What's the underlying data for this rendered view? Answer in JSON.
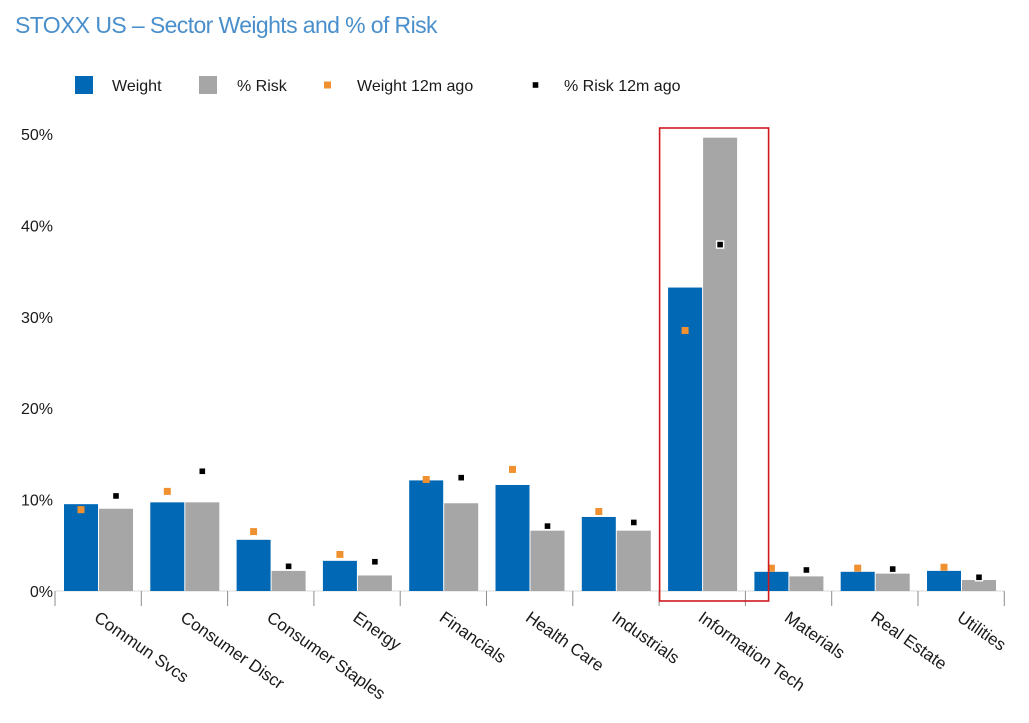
{
  "chart_data": {
    "type": "bar",
    "title": "STOXX US – Sector Weights and % of Risk",
    "categories": [
      "Commun Svcs",
      "Consumer Discr",
      "Consumer Staples",
      "Energy",
      "Financials",
      "Health Care",
      "Industrials",
      "Information Tech",
      "Materials",
      "Real Estate",
      "Utilities"
    ],
    "series": [
      {
        "name": "Weight",
        "kind": "bar",
        "color": "#0068b5",
        "values": [
          9.5,
          9.7,
          5.6,
          3.3,
          12.1,
          11.6,
          8.1,
          33.2,
          2.1,
          2.1,
          2.2
        ]
      },
      {
        "name": "% Risk",
        "kind": "bar",
        "color": "#a6a6a6",
        "values": [
          9.0,
          9.7,
          2.2,
          1.7,
          9.6,
          6.6,
          6.6,
          49.6,
          1.6,
          1.9,
          1.2
        ]
      },
      {
        "name": "Weight 12m ago",
        "kind": "marker",
        "color": "#ef9130",
        "values": [
          8.9,
          10.9,
          6.5,
          4.0,
          12.2,
          13.3,
          8.7,
          28.5,
          2.5,
          2.5,
          2.6
        ]
      },
      {
        "name": "% Risk 12m ago",
        "kind": "marker",
        "color": "#000000",
        "values": [
          10.4,
          13.1,
          2.7,
          3.2,
          12.4,
          7.1,
          7.5,
          37.9,
          2.3,
          2.4,
          1.5
        ]
      }
    ],
    "yticks": [
      "0%",
      "10%",
      "20%",
      "30%",
      "40%",
      "50%"
    ],
    "ylim": [
      0,
      50
    ],
    "grid": false,
    "legend": "top-left",
    "highlight": {
      "category": "Information Tech",
      "color": "#d0191f"
    }
  }
}
